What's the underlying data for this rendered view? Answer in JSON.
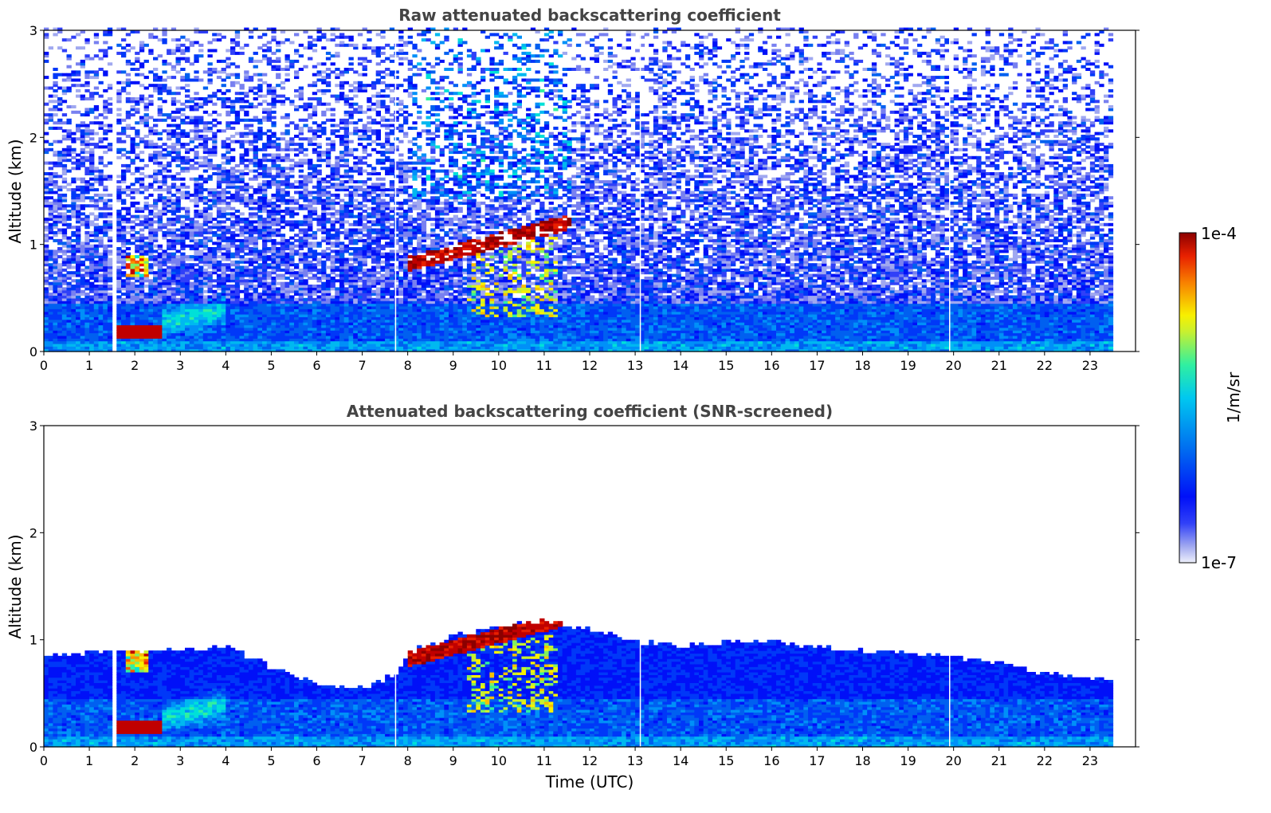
{
  "chart_data": [
    {
      "type": "heatmap",
      "title": "Raw attenuated backscattering coefficient",
      "xlabel": "",
      "ylabel": "Altitude (km)",
      "xlim": [
        0,
        24
      ],
      "ylim": [
        0,
        3
      ],
      "xticks": [
        "0",
        "1",
        "2",
        "3",
        "4",
        "5",
        "6",
        "7",
        "8",
        "9",
        "10",
        "11",
        "12",
        "13",
        "14",
        "15",
        "16",
        "17",
        "18",
        "19",
        "20",
        "21",
        "22",
        "23"
      ],
      "yticks": [
        "0",
        "1",
        "2",
        "3"
      ],
      "data_end_time": 23.45,
      "gap": {
        "start": 1.45,
        "end": 1.55
      },
      "time_dropouts": [
        7.72,
        13.1,
        19.9
      ],
      "features": [
        {
          "name": "boundary layer",
          "t_start": 0,
          "t_end": 23.45,
          "top_km": 0.45
        },
        {
          "name": "low cloud",
          "t_start": 1.55,
          "t_end": 2.6,
          "alt_km": 0.18
        },
        {
          "name": "elevated cloud",
          "t_start": 1.75,
          "t_end": 2.3,
          "alt_km": 0.8
        },
        {
          "name": "rising cloud layer",
          "t_start": 7.9,
          "t_end": 11.5,
          "alt_start_km": 0.8,
          "alt_end_km": 1.2
        }
      ]
    },
    {
      "type": "heatmap",
      "title": "Attenuated backscattering coefficient (SNR-screened)",
      "xlabel": "Time (UTC)",
      "ylabel": "Altitude (km)",
      "xlim": [
        0,
        24
      ],
      "ylim": [
        0,
        3
      ],
      "xticks": [
        "0",
        "1",
        "2",
        "3",
        "4",
        "5",
        "6",
        "7",
        "8",
        "9",
        "10",
        "11",
        "12",
        "13",
        "14",
        "15",
        "16",
        "17",
        "18",
        "19",
        "20",
        "21",
        "22",
        "23"
      ],
      "yticks": [
        "0",
        "1",
        "2",
        "3"
      ],
      "data_end_time": 23.45,
      "screened_top_km": [
        [
          0,
          0.8
        ],
        [
          1.4,
          0.85
        ],
        [
          2.6,
          0.85
        ],
        [
          4,
          0.9
        ],
        [
          5,
          0.7
        ],
        [
          6,
          0.55
        ],
        [
          7,
          0.5
        ],
        [
          7.7,
          0.65
        ],
        [
          8,
          0.85
        ],
        [
          9,
          1.0
        ],
        [
          10,
          1.1
        ],
        [
          11,
          1.15
        ],
        [
          12,
          1.05
        ],
        [
          13,
          0.95
        ],
        [
          14,
          0.9
        ],
        [
          15,
          0.95
        ],
        [
          16,
          0.95
        ],
        [
          17,
          0.9
        ],
        [
          18,
          0.85
        ],
        [
          19,
          0.85
        ],
        [
          20,
          0.8
        ],
        [
          21,
          0.75
        ],
        [
          22,
          0.65
        ],
        [
          23,
          0.6
        ],
        [
          23.45,
          0.6
        ]
      ]
    }
  ],
  "colorbar": {
    "label": "1/m/sr",
    "max_label": "1e-4",
    "min_label": "1e-7",
    "colors": [
      "#eef0fb",
      "#c8ccf4",
      "#a0a8f0",
      "#7880f0",
      "#3040f8",
      "#0010f8",
      "#0038f8",
      "#0060f0",
      "#0090f8",
      "#00b8f0",
      "#00e0d8",
      "#30f0a0",
      "#80f060",
      "#c8f030",
      "#f8f000",
      "#f8c000",
      "#f89000",
      "#f85800",
      "#e82000",
      "#c00000",
      "#8b0000"
    ]
  }
}
